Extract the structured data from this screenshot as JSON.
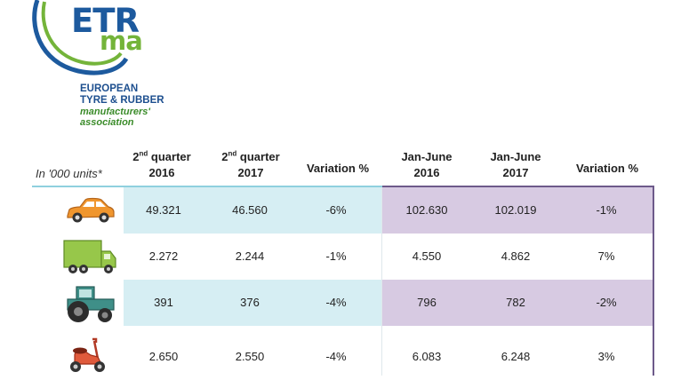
{
  "logo": {
    "word_main": "ETR",
    "word_sub": "ma",
    "org_line1": "EUROPEAN",
    "org_line2": "TYRE & RUBBER",
    "org_line3": "manufacturers'",
    "org_line4": "association"
  },
  "table": {
    "units_label": "In '000 units*",
    "headers": {
      "q2_2016_a": "2",
      "q2_2016_sup": "nd",
      "q2_2016_b": " quarter",
      "q2_2016_year": "2016",
      "q2_2017_a": "2",
      "q2_2017_sup": "nd",
      "q2_2017_b": " quarter",
      "q2_2017_year": "2017",
      "variation_q": "Variation %",
      "jan_june_2016_a": "Jan-June",
      "jan_june_2016_year": "2016",
      "jan_june_2017_a": "Jan-June",
      "jan_june_2017_year": "2017",
      "variation_h": "Variation %"
    },
    "rows": [
      {
        "icon": "car-icon",
        "q2_2016": "49.321",
        "q2_2017": "46.560",
        "var_q": "-6%",
        "h1_2016": "102.630",
        "h1_2017": "102.019",
        "var_h": "-1%"
      },
      {
        "icon": "truck-icon",
        "q2_2016": "2.272",
        "q2_2017": "2.244",
        "var_q": "-1%",
        "h1_2016": "4.550",
        "h1_2017": "4.862",
        "var_h": "7%"
      },
      {
        "icon": "tractor-icon",
        "q2_2016": "391",
        "q2_2017": "376",
        "var_q": "-4%",
        "h1_2016": "796",
        "h1_2017": "782",
        "var_h": "-2%"
      },
      {
        "icon": "scooter-icon",
        "q2_2016": "2.650",
        "q2_2017": "2.550",
        "var_q": "-4%",
        "h1_2016": "6.083",
        "h1_2017": "6.248",
        "var_h": "3%"
      }
    ]
  },
  "colors": {
    "logo_blue": "#1d5a9e",
    "logo_green": "#74b43a",
    "row_blue": "#d6eef3",
    "row_purple": "#d7cae2",
    "rule_blue": "#8fd0de",
    "rule_purple": "#6d5a8a"
  }
}
